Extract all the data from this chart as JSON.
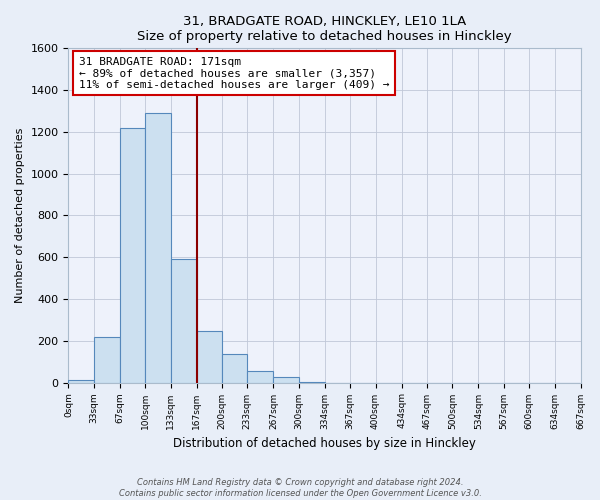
{
  "title": "31, BRADGATE ROAD, HINCKLEY, LE10 1LA",
  "subtitle": "Size of property relative to detached houses in Hinckley",
  "xlabel": "Distribution of detached houses by size in Hinckley",
  "ylabel": "Number of detached properties",
  "bin_edges": [
    0,
    33,
    67,
    100,
    133,
    167,
    200,
    233,
    267,
    300,
    334,
    367,
    400,
    434,
    467,
    500,
    534,
    567,
    600,
    634,
    667
  ],
  "bin_counts": [
    10,
    220,
    1220,
    1290,
    590,
    245,
    135,
    55,
    25,
    5,
    0,
    0,
    0,
    0,
    0,
    0,
    0,
    0,
    0,
    0
  ],
  "bar_color": "#cce0f0",
  "bar_edge_color": "#5588bb",
  "property_line_x": 167,
  "property_line_color": "#8b0000",
  "annotation_text": "31 BRADGATE ROAD: 171sqm\n← 89% of detached houses are smaller (3,357)\n11% of semi-detached houses are larger (409) →",
  "annotation_box_color": "#ffffff",
  "annotation_box_edge": "#cc0000",
  "ylim": [
    0,
    1600
  ],
  "yticks": [
    0,
    200,
    400,
    600,
    800,
    1000,
    1200,
    1400,
    1600
  ],
  "tick_labels": [
    "0sqm",
    "33sqm",
    "67sqm",
    "100sqm",
    "133sqm",
    "167sqm",
    "200sqm",
    "233sqm",
    "267sqm",
    "300sqm",
    "334sqm",
    "367sqm",
    "400sqm",
    "434sqm",
    "467sqm",
    "500sqm",
    "534sqm",
    "567sqm",
    "600sqm",
    "634sqm",
    "667sqm"
  ],
  "footer_line1": "Contains HM Land Registry data © Crown copyright and database right 2024.",
  "footer_line2": "Contains public sector information licensed under the Open Government Licence v3.0.",
  "background_color": "#e8eef8",
  "plot_bg_color": "#eef2fb"
}
